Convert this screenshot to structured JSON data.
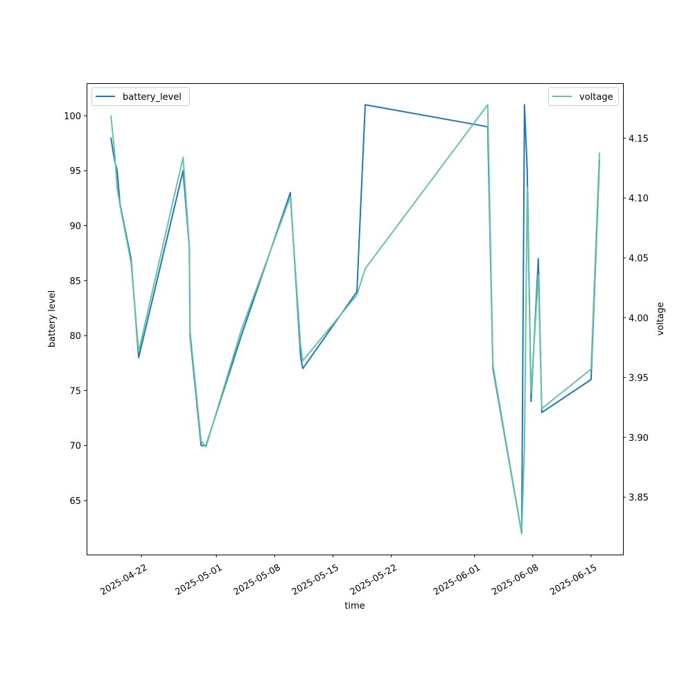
{
  "chart_data": {
    "type": "line",
    "title": "",
    "xlabel": "time",
    "ylabel": "battery level",
    "ylabel_right": "voltage",
    "x": [
      "2025-04-18T08:00",
      "2025-04-18T18:00",
      "2025-04-19T02:00",
      "2025-04-19T10:00",
      "2025-04-20T18:00",
      "2025-04-21T16:00",
      "2025-04-27T00:00",
      "2025-04-27T18:00",
      "2025-04-27T20:00",
      "2025-04-29T04:00",
      "2025-04-29T18:00",
      "2025-05-04T00:00",
      "2025-05-09T21:00",
      "2025-05-11T03:00",
      "2025-05-11T09:00",
      "2025-05-17T21:00",
      "2025-05-18T21:00",
      "2025-06-02T14:00",
      "2025-06-03T05:00",
      "2025-06-06T16:00",
      "2025-06-07T00:00",
      "2025-06-07T08:00",
      "2025-06-07T19:00",
      "2025-06-08T16:00",
      "2025-06-09T02:00",
      "2025-06-15T00:00",
      "2025-06-16T00:00"
    ],
    "series": [
      {
        "name": "battery_level",
        "axis": "left",
        "color": "#1f77b4",
        "values": [
          98,
          96,
          95,
          92,
          87,
          78,
          95,
          88,
          80,
          70,
          70,
          80,
          93,
          78,
          77,
          84,
          101,
          99,
          77,
          62,
          101,
          95,
          74,
          87,
          73,
          76,
          96
        ]
      },
      {
        "name": "voltage",
        "axis": "right",
        "color": "#66c2a5",
        "values": [
          4.169,
          4.14,
          4.108,
          4.094,
          4.046,
          3.972,
          4.134,
          4.06,
          3.989,
          3.897,
          3.892,
          3.99,
          4.101,
          3.976,
          3.964,
          4.019,
          4.041,
          4.178,
          3.96,
          3.82,
          3.892,
          4.109,
          3.937,
          4.036,
          3.924,
          3.957,
          4.138
        ]
      }
    ],
    "xlim": [
      "2025-04-15T10:00",
      "2025-06-18T20:00"
    ],
    "ylim": [
      60.08,
      102.96
    ],
    "ylim_right": [
      3.802,
      4.196
    ],
    "xticks": [
      "2025-04-22",
      "2025-05-01",
      "2025-05-08",
      "2025-05-15",
      "2025-05-22",
      "2025-06-01",
      "2025-06-08",
      "2025-06-15"
    ],
    "yticks": [
      65,
      70,
      75,
      80,
      85,
      90,
      95,
      100
    ],
    "yticks_right": [
      "3.85",
      "3.90",
      "3.95",
      "4.00",
      "4.05",
      "4.10",
      "4.15"
    ],
    "legend": [
      {
        "label": "battery_level",
        "placement": "top-left"
      },
      {
        "label": "voltage",
        "placement": "top-right"
      }
    ],
    "grid": false
  }
}
